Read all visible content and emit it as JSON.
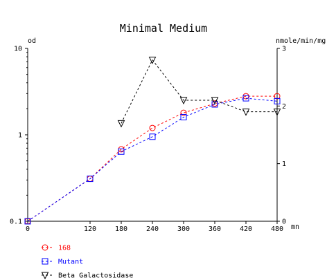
{
  "chart_data": {
    "type": "line",
    "title": "Minimal Medium",
    "left_axis": {
      "label": "od",
      "scale": "log",
      "range": [
        0.1,
        10
      ],
      "ticks": [
        {
          "value": 0.1,
          "label": "0.1"
        },
        {
          "value": 1,
          "label": "1"
        },
        {
          "value": 10,
          "label": "10"
        }
      ]
    },
    "right_axis": {
      "label": "nmole/min/mg",
      "scale": "linear",
      "range": [
        0,
        3
      ],
      "ticks": [
        {
          "value": 0,
          "label": "0"
        },
        {
          "value": 1,
          "label": "1"
        },
        {
          "value": 2,
          "label": "2"
        },
        {
          "value": 3,
          "label": "3"
        }
      ]
    },
    "x_axis": {
      "label": "mn",
      "range": [
        0,
        480
      ],
      "ticks": [
        {
          "value": 0,
          "label": "0"
        },
        {
          "value": 120,
          "label": "120"
        },
        {
          "value": 180,
          "label": "180"
        },
        {
          "value": 240,
          "label": "240"
        },
        {
          "value": 300,
          "label": "300"
        },
        {
          "value": 360,
          "label": "360"
        },
        {
          "value": 420,
          "label": "420"
        },
        {
          "value": 480,
          "label": "480"
        }
      ]
    },
    "grid": false,
    "legend_position": "bottom-left",
    "series": [
      {
        "name": "168",
        "axis": "left",
        "color": "#ff0000",
        "marker": "circle",
        "x": [
          0,
          120,
          180,
          240,
          300,
          360,
          420,
          480
        ],
        "y": [
          0.1,
          0.31,
          0.68,
          1.2,
          1.8,
          2.3,
          2.8,
          2.8
        ]
      },
      {
        "name": "Mutant",
        "axis": "left",
        "color": "#0000ff",
        "marker": "square",
        "x": [
          0,
          120,
          180,
          240,
          300,
          360,
          420,
          480
        ],
        "y": [
          0.1,
          0.31,
          0.64,
          0.95,
          1.6,
          2.25,
          2.65,
          2.45
        ]
      },
      {
        "name": "Beta Galactosidase",
        "axis": "right",
        "color": "#000000",
        "marker": "triangle-down",
        "x": [
          180,
          240,
          300,
          360,
          420,
          480
        ],
        "y": [
          1.7,
          2.8,
          2.1,
          2.1,
          1.9,
          1.9
        ]
      }
    ]
  }
}
